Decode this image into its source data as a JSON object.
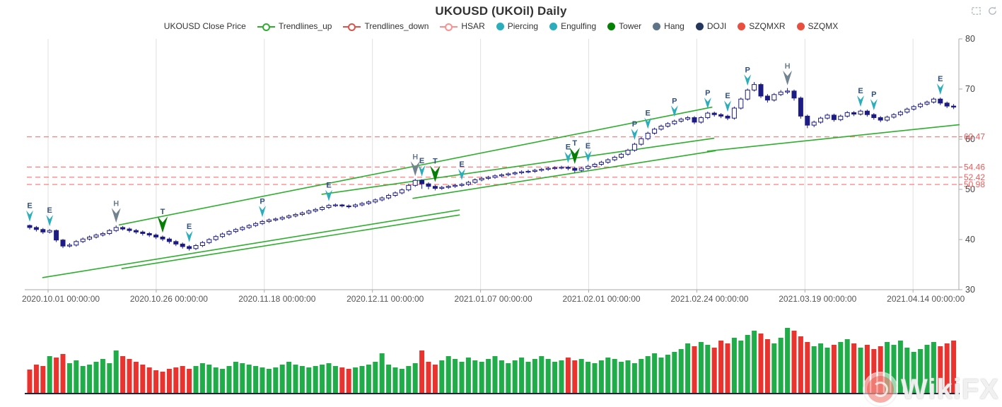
{
  "header": {
    "title": "UKOUSD (UKOil) Daily"
  },
  "toolbox": {
    "icons": [
      "box-zoom-icon",
      "restore-icon"
    ]
  },
  "legend": {
    "items": [
      {
        "label": "UKOUSD Close Price",
        "icon": "none",
        "color": "#333333"
      },
      {
        "label": "Trendlines_up",
        "icon": "line-circle",
        "color": "#2daf2d"
      },
      {
        "label": "Trendlines_down",
        "icon": "line-circle",
        "color": "#d9544a"
      },
      {
        "label": "HSAR",
        "icon": "line-circle",
        "color": "#ff8f8f"
      },
      {
        "label": "Piercing",
        "icon": "circle",
        "color": "#2aaebb"
      },
      {
        "label": "Engulfing",
        "icon": "circle",
        "color": "#2aaebb"
      },
      {
        "label": "Tower",
        "icon": "circle",
        "color": "#038103"
      },
      {
        "label": "Hang",
        "icon": "circle",
        "color": "#5f7587"
      },
      {
        "label": "DOJI",
        "icon": "circle",
        "color": "#24365c"
      },
      {
        "label": "SZQMXR",
        "icon": "circle",
        "color": "#e94f3f"
      },
      {
        "label": "SZQMX",
        "icon": "circle",
        "color": "#e94f3f"
      }
    ]
  },
  "colors": {
    "candle": "#1c1c84",
    "bull_fill": "#ffffff",
    "trendline_up": "#2daf2d",
    "hsar_line": "#ff7070",
    "hsar_label": "#f05b5b",
    "marker_teal": "#2aaebb",
    "marker_green": "#067d06",
    "marker_gray": "#72828f",
    "letter_navy": "#33517d",
    "letter_gray": "#6e8090",
    "volume_up": "#21ac4a",
    "volume_down": "#e8332e",
    "grid": "#e0e0e0",
    "axis": "#aaaaaa",
    "axis_text": "#444444",
    "x_text": "#555555"
  },
  "watermark": {
    "text": "WikiFX"
  },
  "chart_data": {
    "type": "candlestick",
    "title": "UKOUSD (UKOil) Daily",
    "xlabel": "",
    "ylabel": "",
    "ylim": [
      30,
      80
    ],
    "y_ticks": [
      30,
      40,
      50,
      60,
      70,
      80
    ],
    "grid": "vertical-only",
    "legend_position": "top",
    "x_tick_labels": [
      "2020.10.01 00:00:00",
      "2020.10.26 00:00:00",
      "2020.11.18 00:00:00",
      "2020.12.11 00:00:00",
      "2021.01.07 00:00:00",
      "2021.02.01 00:00:00",
      "2021.02.24 00:00:00",
      "2021.03.19 00:00:00",
      "2021.04.14 00:00:00"
    ],
    "hsar_levels": [
      60.47,
      54.46,
      52.42,
      50.98
    ],
    "trendlines_up": [
      [
        1.9,
        32.4,
        64.7,
        45.9
      ],
      [
        13.8,
        34.2,
        64.7,
        44.9
      ],
      [
        13.4,
        42.9,
        102.7,
        66.4
      ],
      [
        43.9,
        49.0,
        103.0,
        60.2
      ],
      [
        57.6,
        48.2,
        103.2,
        57.7
      ],
      [
        101.9,
        57.6,
        139.9,
        62.9
      ]
    ],
    "markers": [
      {
        "index": 0,
        "letter": "E",
        "type": "Engulfing"
      },
      {
        "index": 3,
        "letter": "E",
        "type": "Engulfing"
      },
      {
        "index": 13,
        "letter": "H",
        "type": "Hang"
      },
      {
        "index": 20,
        "letter": "T",
        "type": "Tower"
      },
      {
        "index": 24,
        "letter": "E",
        "type": "Engulfing"
      },
      {
        "index": 35,
        "letter": "P",
        "type": "Piercing"
      },
      {
        "index": 45,
        "letter": "E",
        "type": "Engulfing"
      },
      {
        "index": 58,
        "letter": "H",
        "type": "Hang"
      },
      {
        "index": 59,
        "letter": "E",
        "type": "Engulfing"
      },
      {
        "index": 61,
        "letter": "T",
        "type": "Tower"
      },
      {
        "index": 65,
        "letter": "E",
        "type": "Engulfing"
      },
      {
        "index": 81,
        "letter": "E",
        "type": "Engulfing"
      },
      {
        "index": 82,
        "letter": "T",
        "type": "Tower"
      },
      {
        "index": 84,
        "letter": "E",
        "type": "Engulfing"
      },
      {
        "index": 91,
        "letter": "P",
        "type": "Piercing"
      },
      {
        "index": 93,
        "letter": "E",
        "type": "Engulfing"
      },
      {
        "index": 97,
        "letter": "P",
        "type": "Piercing"
      },
      {
        "index": 102,
        "letter": "P",
        "type": "Piercing"
      },
      {
        "index": 105,
        "letter": "E",
        "type": "Engulfing"
      },
      {
        "index": 108,
        "letter": "P",
        "type": "Piercing"
      },
      {
        "index": 114,
        "letter": "H",
        "type": "Hang"
      },
      {
        "index": 125,
        "letter": "E",
        "type": "Engulfing"
      },
      {
        "index": 127,
        "letter": "P",
        "type": "Piercing"
      },
      {
        "index": 137,
        "letter": "E",
        "type": "Engulfing"
      }
    ],
    "candles": [
      [
        42.8,
        42.4,
        42.0,
        43.0
      ],
      [
        42.4,
        42.0,
        41.6,
        42.7
      ],
      [
        42.0,
        41.5,
        41.1,
        42.3
      ],
      [
        41.5,
        41.8,
        41.2,
        42.1
      ],
      [
        41.8,
        39.9,
        39.5,
        42.0
      ],
      [
        39.9,
        38.7,
        38.3,
        40.1
      ],
      [
        38.7,
        38.9,
        38.4,
        39.3
      ],
      [
        38.9,
        39.6,
        38.6,
        39.9
      ],
      [
        39.6,
        40.1,
        39.3,
        40.4
      ],
      [
        40.1,
        40.5,
        39.8,
        40.8
      ],
      [
        40.5,
        40.9,
        40.2,
        41.2
      ],
      [
        40.9,
        41.2,
        40.6,
        41.5
      ],
      [
        41.2,
        41.8,
        40.9,
        42.1
      ],
      [
        41.8,
        42.4,
        41.5,
        42.8
      ],
      [
        42.4,
        42.1,
        41.8,
        42.7
      ],
      [
        42.1,
        41.8,
        41.4,
        42.4
      ],
      [
        41.8,
        41.5,
        41.1,
        42.1
      ],
      [
        41.5,
        41.2,
        40.8,
        41.8
      ],
      [
        41.2,
        40.9,
        40.5,
        41.5
      ],
      [
        40.9,
        40.5,
        40.1,
        41.2
      ],
      [
        40.5,
        40.1,
        39.7,
        40.8
      ],
      [
        40.1,
        39.6,
        39.2,
        40.4
      ],
      [
        39.6,
        39.1,
        38.7,
        39.9
      ],
      [
        39.1,
        38.6,
        38.2,
        39.4
      ],
      [
        38.6,
        38.2,
        37.8,
        38.9
      ],
      [
        38.2,
        38.8,
        37.9,
        39.1
      ],
      [
        38.8,
        39.4,
        38.5,
        39.7
      ],
      [
        39.4,
        40.0,
        39.1,
        40.3
      ],
      [
        40.0,
        40.6,
        39.7,
        40.9
      ],
      [
        40.6,
        41.1,
        40.3,
        41.4
      ],
      [
        41.1,
        41.6,
        40.8,
        41.9
      ],
      [
        41.6,
        42.0,
        41.3,
        42.3
      ],
      [
        42.0,
        42.4,
        41.7,
        42.7
      ],
      [
        42.4,
        42.8,
        42.1,
        43.1
      ],
      [
        42.8,
        43.2,
        42.5,
        43.5
      ],
      [
        43.2,
        43.6,
        42.9,
        43.9
      ],
      [
        43.6,
        43.9,
        43.3,
        44.2
      ],
      [
        43.9,
        44.1,
        43.6,
        44.4
      ],
      [
        44.1,
        44.4,
        43.8,
        44.7
      ],
      [
        44.4,
        44.7,
        44.1,
        45.0
      ],
      [
        44.7,
        45.0,
        44.4,
        45.3
      ],
      [
        45.0,
        45.3,
        44.7,
        45.6
      ],
      [
        45.3,
        45.7,
        45.0,
        46.0
      ],
      [
        45.7,
        46.0,
        45.4,
        46.3
      ],
      [
        46.0,
        46.4,
        45.7,
        46.7
      ],
      [
        46.4,
        46.8,
        46.1,
        47.1
      ],
      [
        46.8,
        46.9,
        46.5,
        47.2
      ],
      [
        46.9,
        46.7,
        46.4,
        47.1
      ],
      [
        46.7,
        46.6,
        46.2,
        47.0
      ],
      [
        46.6,
        46.9,
        46.3,
        47.2
      ],
      [
        46.9,
        47.2,
        46.6,
        47.5
      ],
      [
        47.2,
        47.5,
        46.9,
        47.8
      ],
      [
        47.5,
        47.9,
        47.2,
        48.2
      ],
      [
        47.9,
        48.3,
        47.6,
        48.6
      ],
      [
        48.3,
        48.8,
        48.0,
        49.1
      ],
      [
        48.8,
        49.3,
        48.5,
        49.6
      ],
      [
        49.3,
        49.9,
        49.0,
        50.2
      ],
      [
        49.9,
        50.8,
        49.6,
        51.1
      ],
      [
        50.8,
        51.8,
        50.5,
        52.1
      ],
      [
        51.8,
        51.1,
        50.1,
        52.0
      ],
      [
        51.1,
        50.6,
        50.0,
        51.4
      ],
      [
        50.6,
        50.2,
        49.8,
        50.9
      ],
      [
        50.2,
        50.4,
        49.9,
        50.7
      ],
      [
        50.4,
        50.6,
        50.1,
        50.9
      ],
      [
        50.6,
        50.8,
        50.3,
        51.1
      ],
      [
        50.8,
        51.0,
        50.5,
        51.3
      ],
      [
        51.0,
        51.4,
        50.7,
        51.7
      ],
      [
        51.4,
        51.9,
        51.1,
        52.2
      ],
      [
        51.9,
        52.2,
        51.6,
        52.5
      ],
      [
        52.2,
        52.4,
        51.9,
        52.7
      ],
      [
        52.4,
        52.7,
        52.1,
        53.0
      ],
      [
        52.7,
        52.9,
        52.4,
        53.2
      ],
      [
        52.9,
        53.1,
        52.6,
        53.4
      ],
      [
        53.1,
        53.3,
        52.8,
        53.6
      ],
      [
        53.3,
        53.5,
        53.0,
        53.8
      ],
      [
        53.5,
        53.6,
        53.2,
        53.9
      ],
      [
        53.6,
        53.8,
        53.3,
        54.1
      ],
      [
        53.8,
        54.0,
        53.5,
        54.3
      ],
      [
        54.0,
        54.2,
        53.7,
        54.5
      ],
      [
        54.2,
        54.3,
        53.9,
        54.6
      ],
      [
        54.3,
        54.4,
        54.0,
        54.7
      ],
      [
        54.4,
        54.2,
        53.8,
        54.7
      ],
      [
        54.2,
        53.8,
        53.3,
        54.5
      ],
      [
        53.8,
        54.2,
        53.5,
        54.5
      ],
      [
        54.2,
        54.6,
        53.9,
        54.9
      ],
      [
        54.6,
        55.0,
        54.3,
        55.3
      ],
      [
        55.0,
        55.4,
        54.7,
        55.7
      ],
      [
        55.4,
        55.9,
        55.1,
        56.2
      ],
      [
        55.9,
        56.4,
        55.6,
        56.7
      ],
      [
        56.4,
        57.0,
        56.1,
        57.3
      ],
      [
        57.0,
        57.8,
        56.7,
        58.1
      ],
      [
        57.8,
        59.0,
        57.5,
        59.3
      ],
      [
        59.0,
        60.1,
        58.7,
        60.4
      ],
      [
        60.1,
        61.2,
        59.8,
        61.5
      ],
      [
        61.2,
        62.0,
        60.9,
        62.3
      ],
      [
        62.0,
        62.6,
        61.7,
        62.9
      ],
      [
        62.6,
        63.1,
        62.3,
        63.4
      ],
      [
        63.1,
        63.6,
        62.8,
        63.9
      ],
      [
        63.6,
        64.0,
        63.3,
        64.3
      ],
      [
        64.0,
        64.3,
        63.7,
        64.6
      ],
      [
        64.3,
        63.4,
        63.0,
        64.6
      ],
      [
        63.4,
        64.3,
        63.1,
        64.6
      ],
      [
        64.3,
        65.2,
        64.0,
        65.5
      ],
      [
        65.2,
        64.9,
        64.5,
        65.5
      ],
      [
        64.9,
        64.6,
        64.2,
        65.2
      ],
      [
        64.6,
        64.2,
        63.8,
        64.9
      ],
      [
        64.2,
        66.2,
        63.9,
        66.5
      ],
      [
        66.2,
        68.0,
        65.9,
        68.3
      ],
      [
        68.0,
        69.8,
        67.7,
        70.1
      ],
      [
        69.8,
        70.9,
        69.5,
        71.4
      ],
      [
        70.9,
        68.6,
        68.2,
        71.2
      ],
      [
        68.6,
        67.8,
        67.3,
        69.0
      ],
      [
        67.8,
        68.9,
        67.5,
        69.2
      ],
      [
        68.9,
        69.4,
        68.6,
        69.8
      ],
      [
        69.4,
        69.6,
        69.0,
        70.2
      ],
      [
        69.6,
        68.2,
        67.7,
        69.9
      ],
      [
        68.2,
        64.6,
        64.1,
        68.5
      ],
      [
        64.6,
        62.8,
        62.2,
        64.9
      ],
      [
        62.8,
        63.4,
        62.4,
        63.7
      ],
      [
        63.4,
        64.2,
        63.1,
        64.5
      ],
      [
        64.2,
        64.8,
        63.9,
        65.1
      ],
      [
        64.8,
        63.9,
        63.5,
        65.1
      ],
      [
        63.9,
        64.6,
        63.6,
        64.9
      ],
      [
        64.6,
        65.3,
        64.3,
        65.6
      ],
      [
        65.3,
        65.0,
        64.6,
        65.6
      ],
      [
        65.0,
        65.6,
        64.7,
        65.9
      ],
      [
        65.6,
        64.9,
        64.5,
        65.9
      ],
      [
        64.9,
        64.3,
        63.9,
        65.2
      ],
      [
        64.3,
        63.8,
        63.4,
        64.6
      ],
      [
        63.8,
        64.4,
        63.5,
        64.7
      ],
      [
        64.4,
        64.9,
        64.1,
        65.2
      ],
      [
        64.9,
        65.4,
        64.6,
        65.7
      ],
      [
        65.4,
        66.0,
        65.1,
        66.3
      ],
      [
        66.0,
        66.5,
        65.7,
        66.8
      ],
      [
        66.5,
        67.0,
        66.2,
        67.3
      ],
      [
        67.0,
        67.4,
        66.7,
        67.7
      ],
      [
        67.4,
        68.0,
        67.1,
        68.3
      ],
      [
        68.0,
        67.2,
        66.8,
        68.3
      ],
      [
        67.2,
        66.6,
        66.2,
        67.5
      ],
      [
        66.6,
        66.4,
        66.0,
        67.0
      ]
    ],
    "volumes": [
      33,
      40,
      38,
      52,
      50,
      55,
      42,
      46,
      38,
      40,
      44,
      48,
      42,
      60,
      52,
      48,
      44,
      40,
      36,
      32,
      30,
      34,
      36,
      38,
      34,
      38,
      42,
      40,
      36,
      34,
      38,
      44,
      42,
      40,
      38,
      36,
      34,
      36,
      40,
      44,
      40,
      38,
      36,
      38,
      40,
      42,
      38,
      36,
      34,
      36,
      38,
      40,
      44,
      56,
      40,
      36,
      34,
      38,
      42,
      60,
      44,
      40,
      46,
      52,
      48,
      44,
      50,
      46,
      44,
      48,
      52,
      46,
      42,
      46,
      50,
      44,
      48,
      52,
      48,
      44,
      46,
      50,
      46,
      48,
      44,
      42,
      46,
      50,
      48,
      44,
      46,
      42,
      48,
      52,
      56,
      50,
      54,
      58,
      62,
      70,
      66,
      72,
      68,
      64,
      74,
      70,
      78,
      74,
      82,
      88,
      84,
      76,
      70,
      78,
      92,
      88,
      80,
      72,
      66,
      70,
      64,
      68,
      72,
      76,
      70,
      64,
      68,
      62,
      66,
      72,
      68,
      74,
      64,
      58,
      62,
      68,
      72,
      66,
      70,
      74
    ]
  }
}
